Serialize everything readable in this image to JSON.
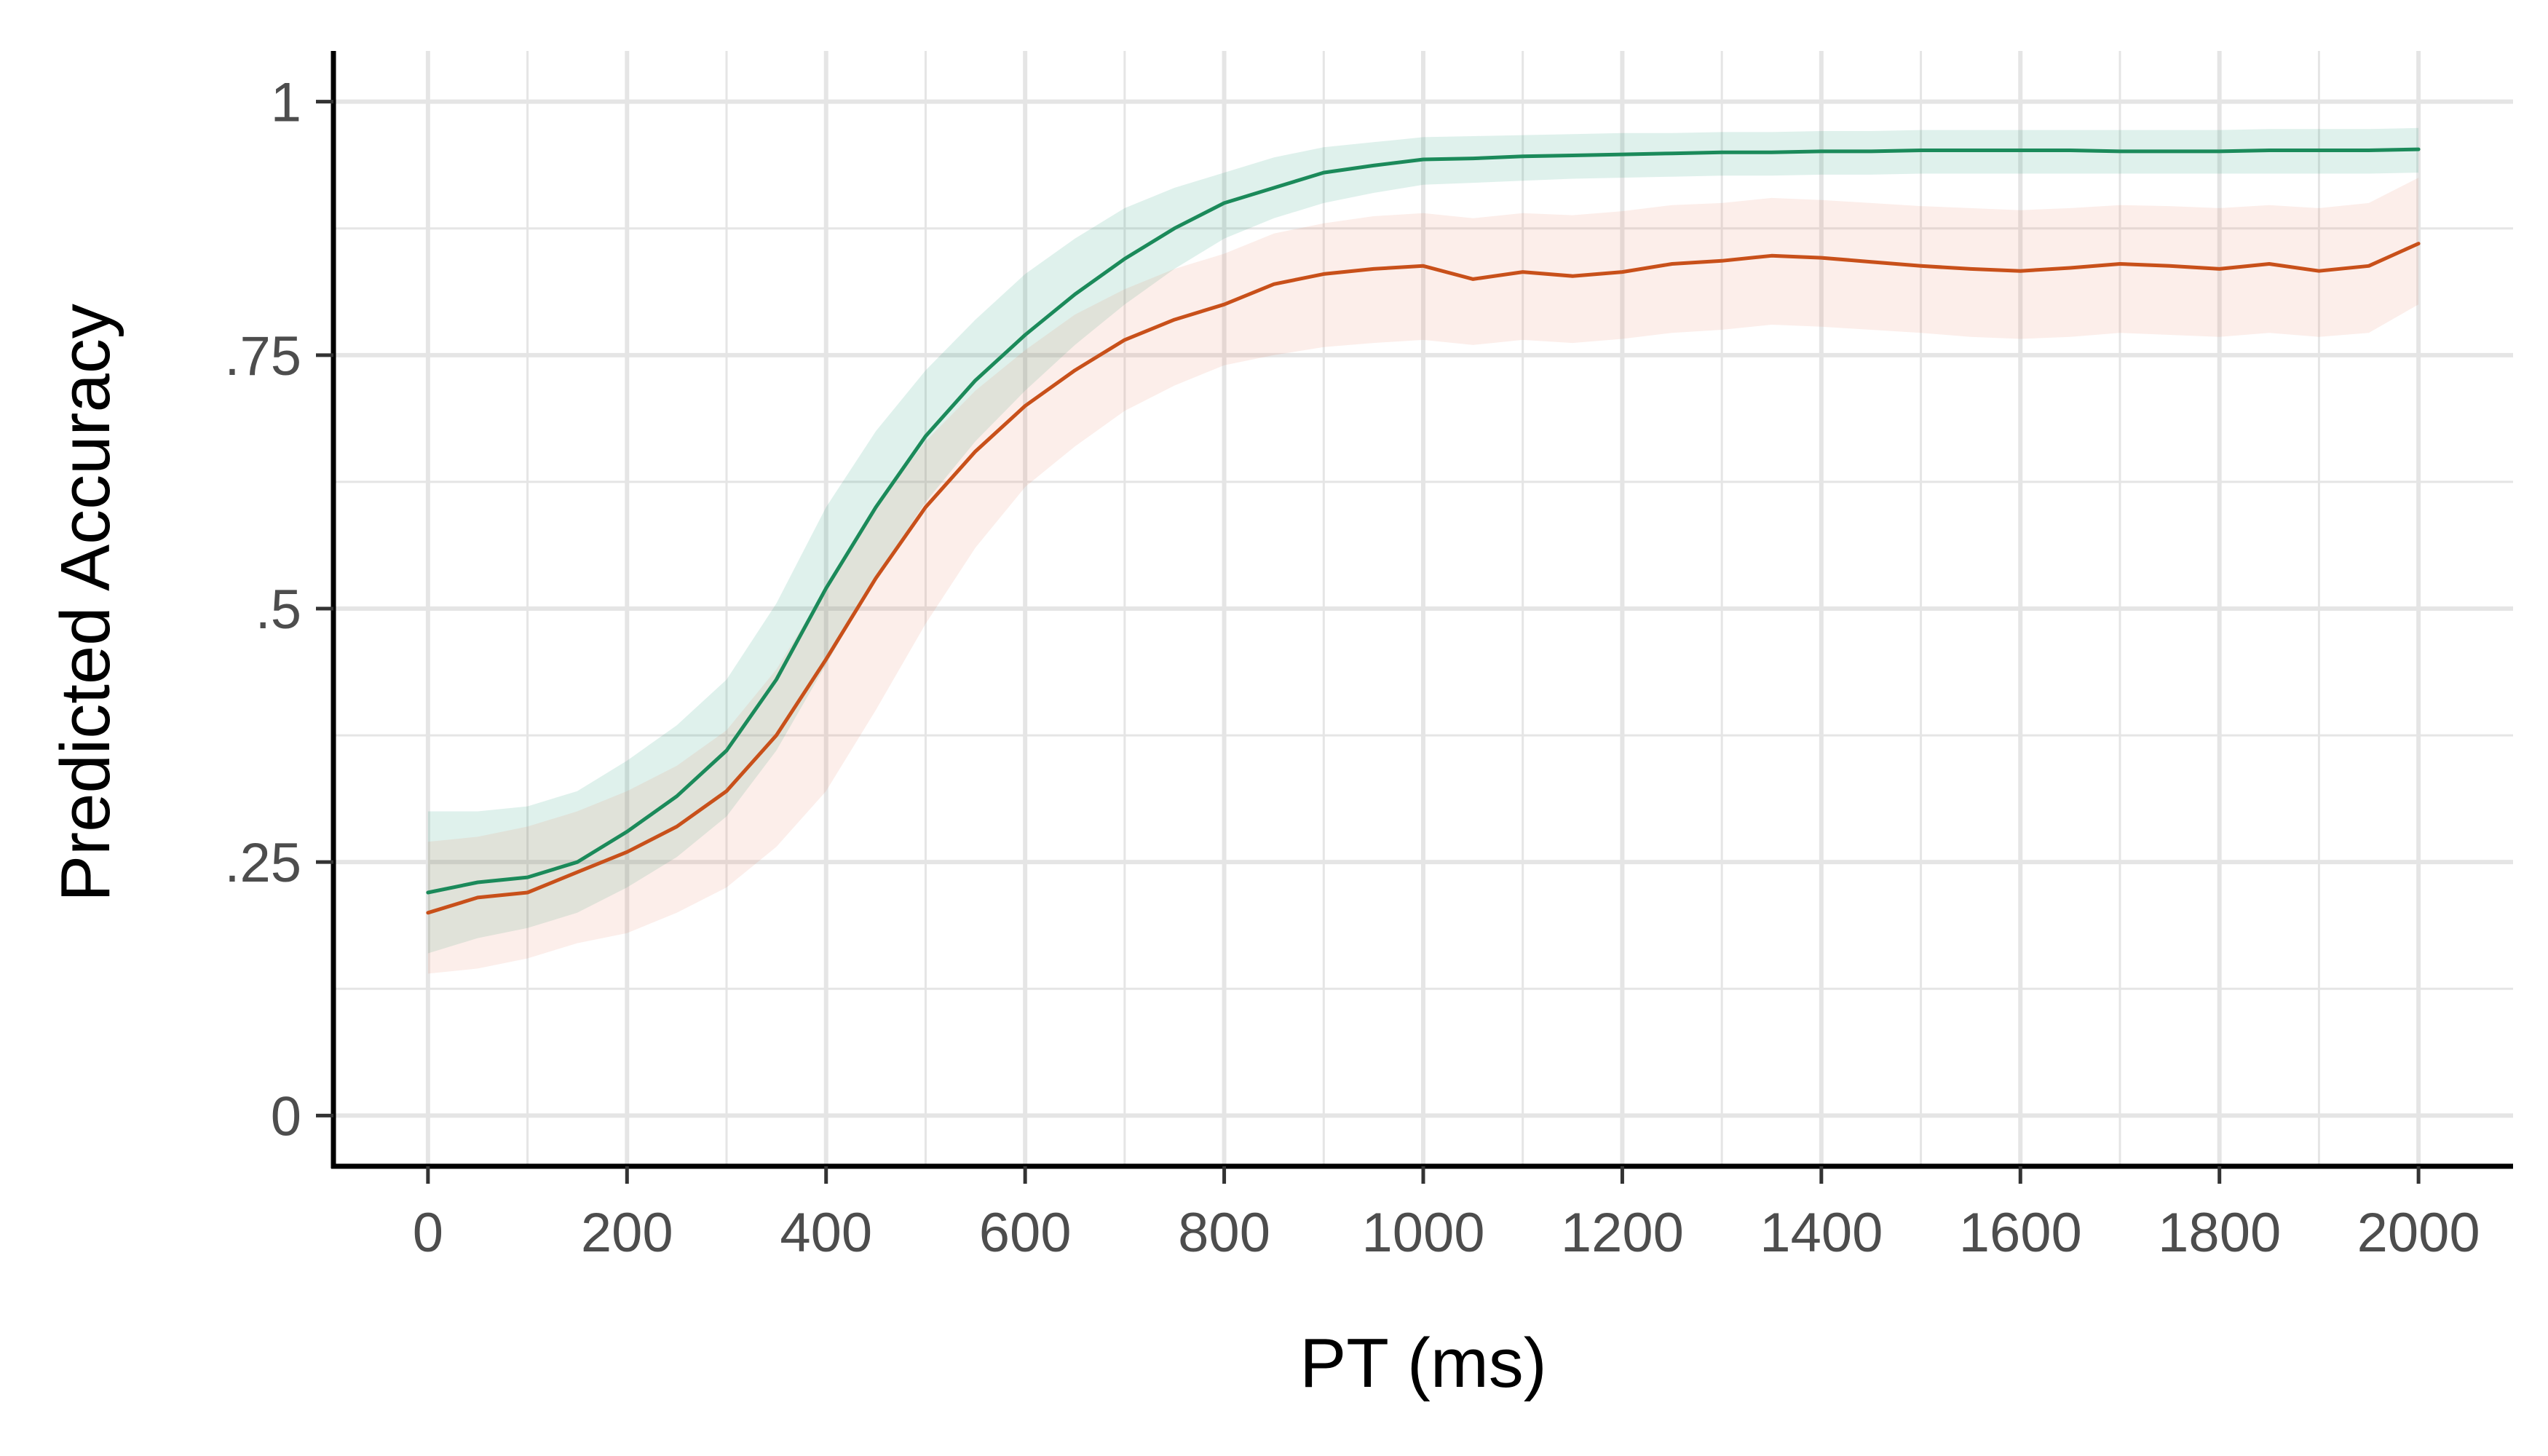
{
  "chart_data": {
    "type": "line",
    "title": "",
    "xlabel": "PT (ms)",
    "ylabel": "Predicted Accuracy",
    "xlim": [
      -95,
      2095
    ],
    "ylim": [
      -0.05,
      1.05
    ],
    "x_ticks": [
      0,
      200,
      400,
      600,
      800,
      1000,
      1200,
      1400,
      1600,
      1800,
      2000
    ],
    "x_tick_labels": [
      "0",
      "200",
      "400",
      "600",
      "800",
      "1000",
      "1200",
      "1400",
      "1600",
      "1800",
      "2000"
    ],
    "y_ticks": [
      0,
      0.25,
      0.5,
      0.75,
      1
    ],
    "y_tick_labels": [
      "0",
      ".25",
      ".5",
      ".75",
      "1"
    ],
    "grid": true,
    "legend": "none",
    "x": [
      0,
      50,
      100,
      150,
      200,
      250,
      300,
      350,
      400,
      450,
      500,
      550,
      600,
      650,
      700,
      750,
      800,
      850,
      900,
      950,
      1000,
      1050,
      1100,
      1150,
      1200,
      1250,
      1300,
      1350,
      1400,
      1450,
      1500,
      1550,
      1600,
      1650,
      1700,
      1750,
      1800,
      1850,
      1900,
      1950,
      2000
    ],
    "series": [
      {
        "color": "#1b8a5a",
        "band_color": "#1b9e77",
        "values": [
          0.22,
          0.23,
          0.235,
          0.25,
          0.28,
          0.315,
          0.36,
          0.43,
          0.52,
          0.6,
          0.67,
          0.725,
          0.77,
          0.81,
          0.845,
          0.875,
          0.9,
          0.915,
          0.93,
          0.937,
          0.943,
          0.944,
          0.946,
          0.947,
          0.948,
          0.949,
          0.95,
          0.95,
          0.951,
          0.951,
          0.952,
          0.952,
          0.952,
          0.952,
          0.951,
          0.951,
          0.951,
          0.952,
          0.952,
          0.952,
          0.953
        ],
        "lower": [
          0.16,
          0.175,
          0.185,
          0.2,
          0.225,
          0.255,
          0.295,
          0.36,
          0.445,
          0.53,
          0.605,
          0.665,
          0.715,
          0.76,
          0.8,
          0.835,
          0.865,
          0.885,
          0.9,
          0.91,
          0.918,
          0.92,
          0.922,
          0.924,
          0.925,
          0.926,
          0.927,
          0.927,
          0.928,
          0.928,
          0.929,
          0.929,
          0.929,
          0.929,
          0.929,
          0.929,
          0.929,
          0.929,
          0.929,
          0.929,
          0.93
        ],
        "upper": [
          0.3,
          0.3,
          0.305,
          0.32,
          0.35,
          0.385,
          0.43,
          0.505,
          0.6,
          0.675,
          0.735,
          0.785,
          0.83,
          0.865,
          0.895,
          0.915,
          0.93,
          0.945,
          0.955,
          0.96,
          0.965,
          0.966,
          0.967,
          0.968,
          0.969,
          0.969,
          0.97,
          0.97,
          0.971,
          0.971,
          0.972,
          0.972,
          0.972,
          0.972,
          0.972,
          0.972,
          0.972,
          0.973,
          0.973,
          0.973,
          0.974
        ]
      },
      {
        "color": "#c8501a",
        "band_color": "#e8896a",
        "values": [
          0.2,
          0.215,
          0.22,
          0.24,
          0.26,
          0.285,
          0.32,
          0.375,
          0.45,
          0.53,
          0.6,
          0.655,
          0.7,
          0.735,
          0.765,
          0.785,
          0.8,
          0.82,
          0.83,
          0.835,
          0.838,
          0.825,
          0.832,
          0.828,
          0.832,
          0.84,
          0.843,
          0.848,
          0.846,
          0.842,
          0.838,
          0.835,
          0.833,
          0.836,
          0.84,
          0.838,
          0.835,
          0.84,
          0.833,
          0.838,
          0.86
        ],
        "lower": [
          0.14,
          0.145,
          0.155,
          0.17,
          0.18,
          0.2,
          0.225,
          0.265,
          0.32,
          0.4,
          0.485,
          0.56,
          0.62,
          0.66,
          0.695,
          0.72,
          0.74,
          0.75,
          0.758,
          0.762,
          0.765,
          0.76,
          0.765,
          0.762,
          0.766,
          0.772,
          0.775,
          0.78,
          0.778,
          0.775,
          0.772,
          0.768,
          0.766,
          0.768,
          0.772,
          0.77,
          0.768,
          0.772,
          0.768,
          0.772,
          0.8
        ],
        "upper": [
          0.27,
          0.275,
          0.285,
          0.3,
          0.32,
          0.345,
          0.38,
          0.44,
          0.52,
          0.6,
          0.665,
          0.715,
          0.755,
          0.79,
          0.815,
          0.835,
          0.85,
          0.87,
          0.88,
          0.887,
          0.89,
          0.885,
          0.89,
          0.888,
          0.892,
          0.898,
          0.9,
          0.905,
          0.903,
          0.9,
          0.897,
          0.895,
          0.893,
          0.895,
          0.898,
          0.897,
          0.895,
          0.898,
          0.895,
          0.9,
          0.925
        ]
      }
    ]
  },
  "colors": {
    "grid": "#e5e5e5",
    "axis": "#000000",
    "tick_label": "#4d4d4d"
  }
}
